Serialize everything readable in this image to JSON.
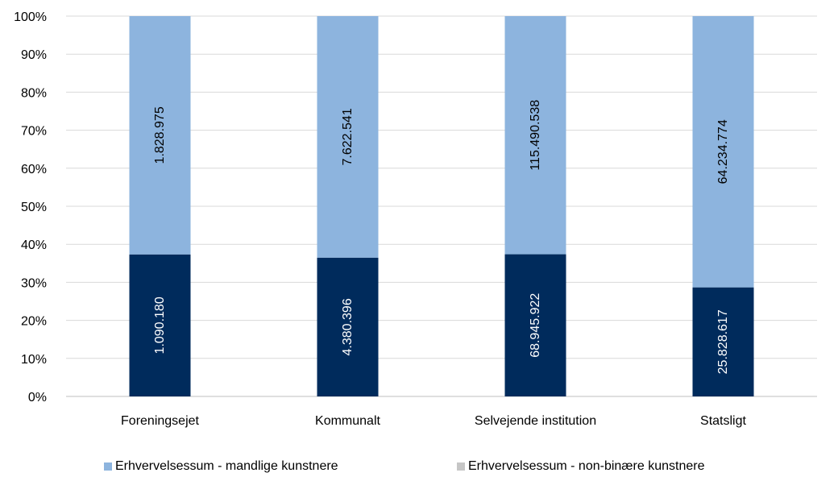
{
  "chart_data": {
    "type": "bar",
    "stacked": true,
    "normalized": true,
    "categories": [
      "Foreningsejet",
      "Kommunalt",
      "Selvejende institution",
      "Statsligt"
    ],
    "series": [
      {
        "name": "",
        "color": "#002b5c",
        "values": [
          1090180,
          4380396,
          68945922,
          25828617
        ],
        "labels": [
          "1.090.180",
          "4.380.396",
          "68.945.922",
          "25.828.617"
        ]
      },
      {
        "name": "Erhvervelsessum - mandlige kunstnere",
        "color": "#8db4de",
        "values": [
          1828975,
          7622541,
          115490538,
          64234774
        ],
        "labels": [
          "1.828.975",
          "7.622.541",
          "115.490.538",
          "64.234.774"
        ]
      },
      {
        "name": "Erhvervelsessum -  non-binære kunstnere",
        "color": "#c6c6c6",
        "values": [
          0,
          0,
          0,
          0
        ],
        "labels": [
          "",
          "",
          "",
          ""
        ]
      }
    ],
    "y_ticks": [
      "0%",
      "10%",
      "20%",
      "30%",
      "40%",
      "50%",
      "60%",
      "70%",
      "80%",
      "90%",
      "100%"
    ],
    "ylim": [
      0,
      100
    ],
    "grid": true,
    "legend_position": "bottom"
  }
}
